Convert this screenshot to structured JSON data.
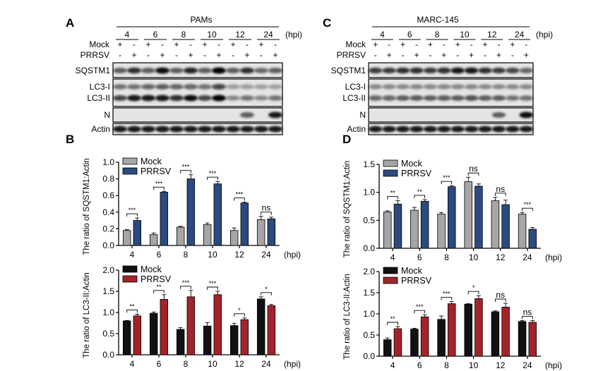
{
  "panels": {
    "A": {
      "label": "A",
      "cell": "PAMs"
    },
    "B": {
      "label": "B"
    },
    "C": {
      "label": "C",
      "cell": "MARC-145"
    },
    "D": {
      "label": "D"
    }
  },
  "blot": {
    "timepoints": [
      "4",
      "6",
      "8",
      "10",
      "12",
      "24"
    ],
    "unit": "(hpi)",
    "row_labels": {
      "mock": "Mock",
      "prrsv": "PRRSV"
    },
    "mock_signs": [
      "+",
      "-",
      "+",
      "-",
      "+",
      "-",
      "+",
      "-",
      "+",
      "-",
      "+",
      "-"
    ],
    "prrsv_signs": [
      "-",
      "+",
      "-",
      "+",
      "-",
      "+",
      "-",
      "+",
      "-",
      "+",
      "-",
      "+"
    ],
    "proteins": [
      "SQSTM1",
      "LC3-I",
      "LC3-II",
      "N",
      "Actin"
    ]
  },
  "colors": {
    "mock_gray": "#a6a6a6",
    "prrsv_blue": "#2b4a80",
    "mock_black": "#111111",
    "prrsv_red": "#a3232a"
  },
  "chart_data": [
    {
      "id": "B-top",
      "type": "bar",
      "title": "",
      "categories": [
        "4",
        "6",
        "8",
        "10",
        "12",
        "24"
      ],
      "xunit": "(hpi)",
      "ylabel": "The ratio of SQSTM1:Actin",
      "ylim": [
        0,
        1.0
      ],
      "yticks": [
        "0.0",
        "0.2",
        "0.4",
        "0.6",
        "0.8",
        "1.0"
      ],
      "legend": "top-left",
      "series": [
        {
          "name": "Mock",
          "color": "#a6a6a6",
          "values": [
            0.18,
            0.13,
            0.22,
            0.25,
            0.18,
            0.31
          ],
          "errors": [
            0.01,
            0.02,
            0.01,
            0.02,
            0.03,
            0.04
          ]
        },
        {
          "name": "PRRSV",
          "color": "#2b4a80",
          "values": [
            0.3,
            0.64,
            0.8,
            0.74,
            0.51,
            0.32
          ],
          "errors": [
            0.03,
            0.01,
            0.05,
            0.03,
            0.01,
            0.02
          ]
        }
      ],
      "significance": [
        "***",
        "***",
        "***",
        "***",
        "***",
        "ns"
      ]
    },
    {
      "id": "B-bottom",
      "type": "bar",
      "title": "",
      "categories": [
        "4",
        "6",
        "8",
        "10",
        "12",
        "24"
      ],
      "xunit": "(hpi)",
      "ylabel": "The ratio of LC3-II:Actin",
      "ylim": [
        0,
        2.0
      ],
      "yticks": [
        "0.0",
        "0.5",
        "1.0",
        "1.5",
        "2.0"
      ],
      "legend": "top-left",
      "series": [
        {
          "name": "Mock",
          "color": "#111111",
          "values": [
            0.8,
            0.98,
            0.6,
            0.68,
            0.69,
            1.32
          ],
          "errors": [
            0.01,
            0.03,
            0.04,
            0.08,
            0.05,
            0.05
          ]
        },
        {
          "name": "PRRSV",
          "color": "#a3232a",
          "values": [
            0.92,
            1.31,
            1.37,
            1.42,
            0.83,
            1.16
          ],
          "errors": [
            0.04,
            0.11,
            0.15,
            0.08,
            0.04,
            0.03
          ]
        }
      ],
      "significance": [
        "**",
        "**",
        "***",
        "***",
        "*",
        "*"
      ]
    },
    {
      "id": "D-top",
      "type": "bar",
      "title": "",
      "categories": [
        "4",
        "6",
        "8",
        "10",
        "12",
        "24"
      ],
      "xunit": "(hpi)",
      "ylabel": "The ratio of SQSTM1:Actin",
      "ylim": [
        0,
        1.5
      ],
      "yticks": [
        "0.0",
        "0.5",
        "1.0",
        "1.5"
      ],
      "legend": "top-left",
      "series": [
        {
          "name": "Mock",
          "color": "#a6a6a6",
          "values": [
            0.65,
            0.68,
            0.61,
            1.19,
            0.85,
            0.61
          ],
          "errors": [
            0.02,
            0.05,
            0.03,
            0.08,
            0.06,
            0.03
          ]
        },
        {
          "name": "PRRSV",
          "color": "#2b4a80",
          "values": [
            0.79,
            0.84,
            1.1,
            1.11,
            0.78,
            0.34
          ],
          "errors": [
            0.06,
            0.03,
            0.02,
            0.04,
            0.08,
            0.03
          ]
        }
      ],
      "significance": [
        "**",
        "**",
        "***",
        "ns",
        "ns",
        "***"
      ]
    },
    {
      "id": "D-bottom",
      "type": "bar",
      "title": "",
      "categories": [
        "4",
        "6",
        "8",
        "10",
        "12",
        "24"
      ],
      "xunit": "(hpi)",
      "ylabel": "The ratio of LC3-II:Actin",
      "ylim": [
        0,
        2.0
      ],
      "yticks": [
        "0.0",
        "0.5",
        "1.0",
        "1.5",
        "2.0"
      ],
      "legend": "top-left",
      "series": [
        {
          "name": "Mock",
          "color": "#111111",
          "values": [
            0.39,
            0.64,
            0.87,
            1.23,
            1.05,
            0.82
          ],
          "errors": [
            0.04,
            0.02,
            0.08,
            0.01,
            0.02,
            0.02
          ]
        },
        {
          "name": "PRRSV",
          "color": "#a3232a",
          "values": [
            0.65,
            0.93,
            1.24,
            1.36,
            1.16,
            0.8
          ],
          "errors": [
            0.05,
            0.05,
            0.05,
            0.07,
            0.09,
            0.04
          ]
        }
      ],
      "significance": [
        "**",
        "***",
        "***",
        "*",
        "ns",
        "ns"
      ]
    }
  ]
}
